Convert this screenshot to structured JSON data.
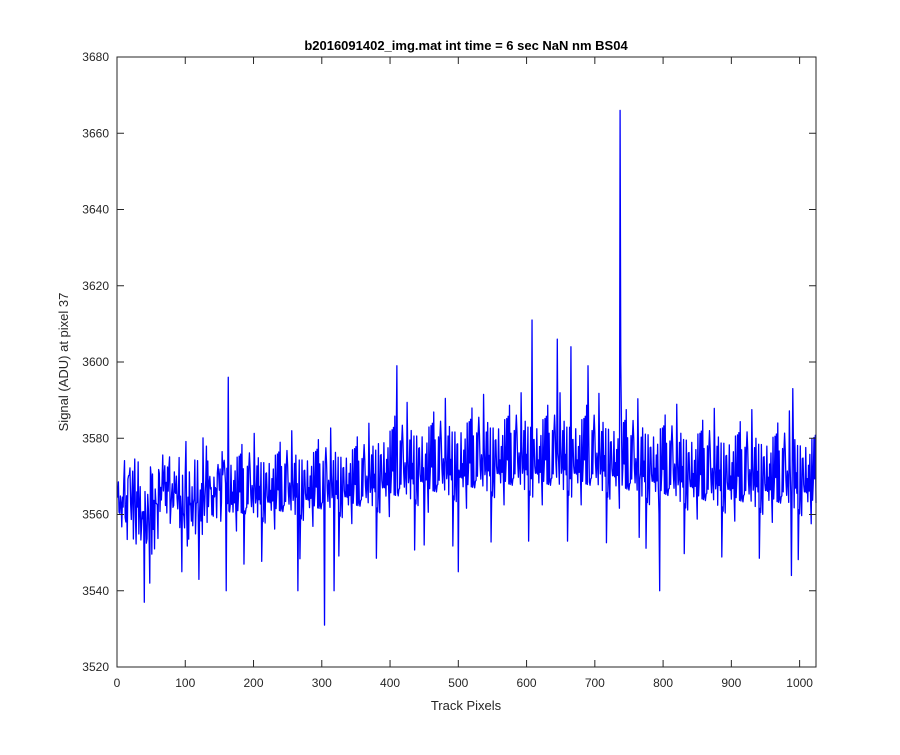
{
  "chart_data": {
    "type": "line",
    "title": "b2016091402_img.mat int time = 6 sec  NaN nm BS04",
    "xlabel": "Track Pixels",
    "ylabel": "Signal (ADU) at pixel 37",
    "xlim": [
      0,
      1024
    ],
    "ylim": [
      3520,
      3680
    ],
    "xticks": [
      0,
      100,
      200,
      300,
      400,
      500,
      600,
      700,
      800,
      900,
      1000
    ],
    "yticks": [
      3520,
      3540,
      3560,
      3580,
      3600,
      3620,
      3640,
      3660,
      3680
    ],
    "grid": false,
    "legend": "none",
    "series": [
      {
        "color": "#0000ff",
        "x_start": 1,
        "x_step": 1,
        "noise": {
          "amplitude_low": 6.5,
          "amplitude_high": 7.5,
          "seed": 37
        },
        "baseline": {
          "x": [
            1,
            200,
            360,
            400,
            560,
            700,
            860,
            1024
          ],
          "y": [
            3563,
            3564,
            3566,
            3569,
            3572,
            3572,
            3568,
            3567
          ]
        },
        "points": [
          [
            40,
            3537
          ],
          [
            48,
            3542
          ],
          [
            55,
            3551
          ],
          [
            95,
            3545
          ],
          [
            120,
            3543
          ],
          [
            160,
            3540
          ],
          [
            163,
            3596
          ],
          [
            186,
            3547
          ],
          [
            265,
            3540
          ],
          [
            304,
            3531
          ],
          [
            318,
            3540
          ],
          [
            410,
            3599
          ],
          [
            450,
            3552
          ],
          [
            500,
            3545
          ],
          [
            608,
            3611
          ],
          [
            645,
            3606
          ],
          [
            665,
            3604
          ],
          [
            690,
            3599
          ],
          [
            737,
            3666
          ],
          [
            738,
            3600
          ],
          [
            765,
            3554
          ],
          [
            795,
            3540
          ],
          [
            988,
            3544
          ],
          [
            990,
            3593
          ]
        ]
      }
    ]
  }
}
